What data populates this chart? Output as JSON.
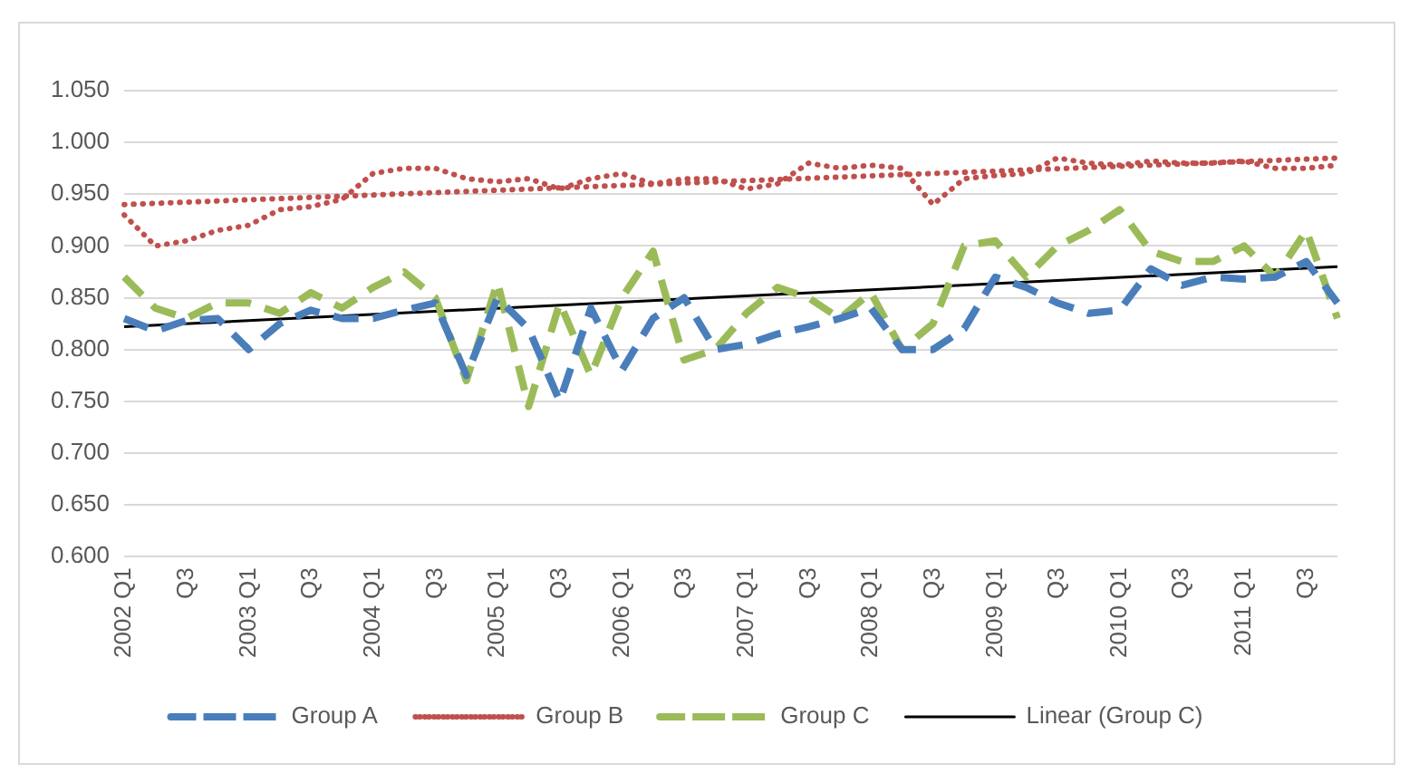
{
  "chart_data": {
    "type": "line",
    "categories": [
      "2002 Q1",
      null,
      "Q3",
      null,
      "2003 Q1",
      null,
      "Q3",
      null,
      "2004 Q1",
      null,
      "Q3",
      null,
      "2005 Q1",
      null,
      "Q3",
      null,
      "2006 Q1",
      null,
      "Q3",
      null,
      "2007 Q1",
      null,
      "Q3",
      null,
      "2008 Q1",
      null,
      "Q3",
      null,
      "2009 Q1",
      null,
      "Q3",
      null,
      "2010 Q1",
      null,
      "Q3",
      null,
      "2011 Q1",
      null,
      "Q3",
      null
    ],
    "series": [
      {
        "name": "Group A",
        "color": "#4a7ebb",
        "line_style": "dashed",
        "values": [
          0.83,
          0.818,
          0.828,
          0.83,
          0.8,
          0.825,
          0.838,
          0.83,
          0.83,
          0.838,
          0.845,
          0.775,
          0.85,
          0.82,
          0.75,
          0.84,
          0.78,
          0.83,
          0.85,
          0.8,
          0.805,
          0.815,
          0.822,
          0.83,
          0.84,
          0.8,
          0.8,
          0.82,
          0.87,
          0.86,
          0.845,
          0.835,
          0.838,
          0.878,
          0.862,
          0.87,
          0.868,
          0.87,
          0.885,
          0.845
        ]
      },
      {
        "name": "Group B",
        "color": "#c0504d",
        "line_style": "dotted",
        "values": [
          0.93,
          0.9,
          0.905,
          0.915,
          0.92,
          0.935,
          0.938,
          0.945,
          0.97,
          0.975,
          0.975,
          0.965,
          0.962,
          0.965,
          0.955,
          0.965,
          0.97,
          0.96,
          0.965,
          0.965,
          0.955,
          0.96,
          0.98,
          0.975,
          0.978,
          0.975,
          0.94,
          0.965,
          0.968,
          0.97,
          0.985,
          0.98,
          0.978,
          0.982,
          0.98,
          0.98,
          0.982,
          0.975,
          0.975,
          0.978
        ]
      },
      {
        "name": "Group C",
        "color": "#9bbb59",
        "line_style": "dashed",
        "values": [
          0.87,
          0.84,
          0.83,
          0.845,
          0.845,
          0.835,
          0.855,
          0.84,
          0.86,
          0.875,
          0.85,
          0.77,
          0.865,
          0.745,
          0.845,
          0.775,
          0.85,
          0.895,
          0.79,
          0.8,
          0.835,
          0.86,
          0.85,
          0.83,
          0.855,
          0.8,
          0.825,
          0.9,
          0.905,
          0.87,
          0.9,
          0.915,
          0.935,
          0.895,
          0.885,
          0.885,
          0.9,
          0.87,
          0.915,
          0.83
        ]
      },
      {
        "name": "Linear (Group C)",
        "color": "#000000",
        "line_style": "solid",
        "values": [
          0.822,
          null,
          null,
          null,
          null,
          null,
          null,
          null,
          null,
          null,
          null,
          null,
          null,
          null,
          null,
          null,
          null,
          null,
          null,
          null,
          null,
          null,
          null,
          null,
          null,
          null,
          null,
          null,
          null,
          null,
          null,
          null,
          null,
          null,
          null,
          null,
          null,
          null,
          null,
          0.88
        ]
      },
      {
        "color": "#c0504d",
        "line_style": "dotted",
        "values": [
          0.94,
          null,
          null,
          null,
          null,
          null,
          null,
          null,
          null,
          null,
          null,
          null,
          null,
          null,
          null,
          null,
          null,
          null,
          null,
          null,
          null,
          null,
          null,
          null,
          null,
          null,
          null,
          null,
          null,
          null,
          null,
          null,
          null,
          null,
          null,
          null,
          null,
          null,
          null,
          0.985
        ]
      }
    ],
    "ylim": [
      0.6,
      1.05
    ],
    "yticks": [
      {
        "value": 0.6,
        "label": "0.600"
      },
      {
        "value": 0.65,
        "label": "0.650"
      },
      {
        "value": 0.7,
        "label": "0.700"
      },
      {
        "value": 0.75,
        "label": "0.750"
      },
      {
        "value": 0.8,
        "label": "0.800"
      },
      {
        "value": 0.85,
        "label": "0.850"
      },
      {
        "value": 0.9,
        "label": "0.900"
      },
      {
        "value": 0.95,
        "label": "0.950"
      },
      {
        "value": 1.0,
        "label": "1.000"
      },
      {
        "value": 1.05,
        "label": "1.050"
      }
    ],
    "grid": "y",
    "legend": "bottom",
    "marker": "none"
  }
}
